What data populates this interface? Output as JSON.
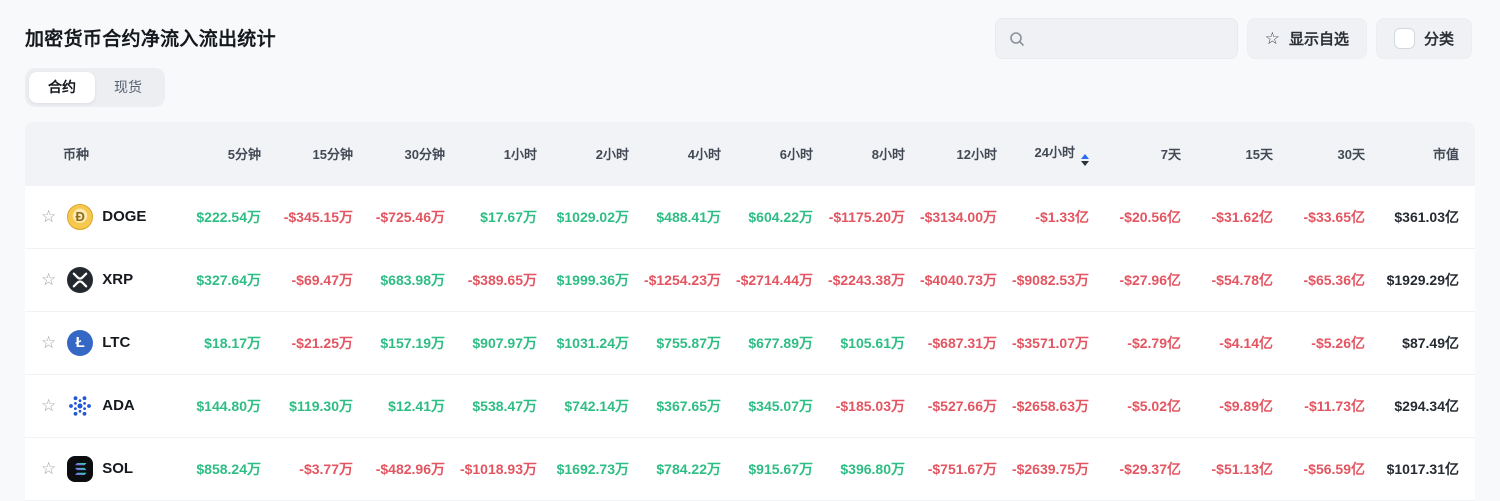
{
  "page": {
    "title": "加密货币合约净流入流出统计"
  },
  "tabs": [
    {
      "label": "合约",
      "active": true
    },
    {
      "label": "现货",
      "active": false
    }
  ],
  "toolbar": {
    "search_placeholder": "",
    "show_favorites": "显示自选",
    "category": "分类",
    "category_checked": false
  },
  "colors": {
    "positive": "#2ebd85",
    "negative": "#e35561",
    "sort_active": "#2a6df5"
  },
  "table": {
    "columns": [
      "币种",
      "5分钟",
      "15分钟",
      "30分钟",
      "1小时",
      "2小时",
      "4小时",
      "6小时",
      "8小时",
      "12小时",
      "24小时",
      "7天",
      "15天",
      "30天",
      "市值"
    ],
    "sorted_column": "24小时",
    "rows": [
      {
        "symbol": "DOGE",
        "icon": "doge",
        "favorited": false,
        "values": [
          "$222.54万",
          "-$345.15万",
          "-$725.46万",
          "$17.67万",
          "$1029.02万",
          "$488.41万",
          "$604.22万",
          "-$1175.20万",
          "-$3134.00万",
          "-$1.33亿",
          "-$20.56亿",
          "-$31.62亿",
          "-$33.65亿"
        ],
        "market_cap": "$361.03亿"
      },
      {
        "symbol": "XRP",
        "icon": "xrp",
        "favorited": false,
        "values": [
          "$327.64万",
          "-$69.47万",
          "$683.98万",
          "-$389.65万",
          "$1999.36万",
          "-$1254.23万",
          "-$2714.44万",
          "-$2243.38万",
          "-$4040.73万",
          "-$9082.53万",
          "-$27.96亿",
          "-$54.78亿",
          "-$65.36亿"
        ],
        "market_cap": "$1929.29亿"
      },
      {
        "symbol": "LTC",
        "icon": "ltc",
        "favorited": false,
        "values": [
          "$18.17万",
          "-$21.25万",
          "$157.19万",
          "$907.97万",
          "$1031.24万",
          "$755.87万",
          "$677.89万",
          "$105.61万",
          "-$687.31万",
          "-$3571.07万",
          "-$2.79亿",
          "-$4.14亿",
          "-$5.26亿"
        ],
        "market_cap": "$87.49亿"
      },
      {
        "symbol": "ADA",
        "icon": "ada",
        "favorited": false,
        "values": [
          "$144.80万",
          "$119.30万",
          "$12.41万",
          "$538.47万",
          "$742.14万",
          "$367.65万",
          "$345.07万",
          "-$185.03万",
          "-$527.66万",
          "-$2658.63万",
          "-$5.02亿",
          "-$9.89亿",
          "-$11.73亿"
        ],
        "market_cap": "$294.34亿"
      },
      {
        "symbol": "SOL",
        "icon": "sol",
        "favorited": false,
        "values": [
          "$858.24万",
          "-$3.77万",
          "-$482.96万",
          "-$1018.93万",
          "$1692.73万",
          "$784.22万",
          "$915.67万",
          "$396.80万",
          "-$751.67万",
          "-$2639.75万",
          "-$29.37亿",
          "-$51.13亿",
          "-$56.59亿"
        ],
        "market_cap": "$1017.31亿"
      }
    ]
  }
}
